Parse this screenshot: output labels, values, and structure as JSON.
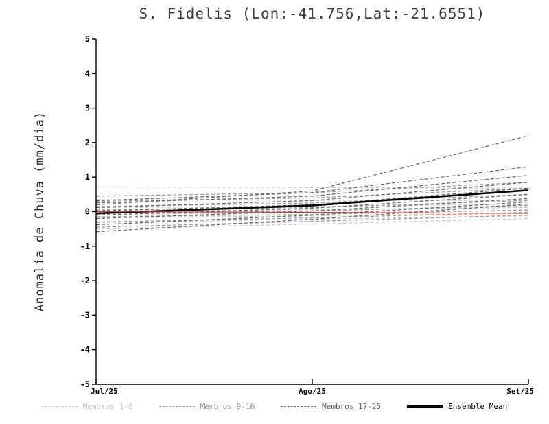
{
  "title": "S. Fidelis (Lon:-41.756,Lat:-21.6551)",
  "ylabel": "Anomalia de Chuva (mm/dia)",
  "chart_data": {
    "type": "line",
    "title": "S. Fidelis (Lon:-41.756,Lat:-21.6551)",
    "xlabel": "",
    "ylabel": "Anomalia de Chuva (mm/dia)",
    "x_categories": [
      "Jul/25",
      "Ago/25",
      "Set/25"
    ],
    "ylim": [
      -5,
      5
    ],
    "y_ticks": [
      5,
      4,
      3,
      2,
      1,
      0,
      -1,
      -2,
      -3,
      -4,
      -5
    ],
    "grid": false,
    "legend_position": "bottom",
    "groups": [
      {
        "name": "Membros 1-8",
        "color": "#c9c9c9",
        "style": "dashed",
        "width": 1.2,
        "series": [
          [
            0.72,
            0.7,
            0.68
          ],
          [
            0.35,
            0.33,
            0.32
          ],
          [
            0.12,
            0.15,
            0.22
          ],
          [
            0.02,
            0.06,
            0.12
          ],
          [
            -0.08,
            -0.03,
            0.03
          ],
          [
            -0.18,
            -0.12,
            -0.05
          ],
          [
            -0.32,
            -0.22,
            -0.12
          ],
          [
            -0.5,
            -0.36,
            -0.2
          ]
        ]
      },
      {
        "name": "Membros 9-16",
        "color": "#999999",
        "style": "dashed",
        "width": 1.2,
        "series": [
          [
            0.45,
            0.55,
            0.85
          ],
          [
            0.3,
            0.4,
            0.68
          ],
          [
            0.15,
            0.25,
            0.5
          ],
          [
            0.05,
            0.12,
            0.32
          ],
          [
            -0.05,
            0.02,
            0.18
          ],
          [
            -0.15,
            -0.08,
            0.05
          ],
          [
            -0.3,
            -0.18,
            -0.02
          ],
          [
            -0.45,
            -0.28,
            -0.1
          ]
        ]
      },
      {
        "name": "Membros 17-25",
        "color": "#666666",
        "style": "dashed",
        "width": 1.2,
        "series": [
          [
            0.2,
            0.6,
            2.2
          ],
          [
            0.32,
            0.55,
            1.3
          ],
          [
            0.25,
            0.45,
            1.05
          ],
          [
            0.12,
            0.32,
            0.85
          ],
          [
            0.02,
            0.2,
            0.68
          ],
          [
            -0.1,
            0.1,
            0.5
          ],
          [
            -0.2,
            0.02,
            0.38
          ],
          [
            -0.38,
            -0.1,
            0.28
          ],
          [
            -0.58,
            -0.22,
            0.22
          ]
        ]
      },
      {
        "name": "Ensemble Mean",
        "color": "#000000",
        "style": "solid",
        "width": 2.6,
        "series": [
          [
            -0.05,
            0.18,
            0.62
          ]
        ]
      },
      {
        "name": "Zero Reference",
        "color": "#dd2a2a",
        "style": "solid",
        "width": 1.1,
        "series": [
          [
            0.0,
            -0.02,
            -0.05
          ]
        ]
      }
    ],
    "legend": [
      {
        "label": "Membros 1-8",
        "color": "#c9c9c9",
        "style": "dashed"
      },
      {
        "label": "Membros 9-16",
        "color": "#999999",
        "style": "dashed"
      },
      {
        "label": "Membros 17-25",
        "color": "#666666",
        "style": "dashed"
      },
      {
        "label": "Ensemble Mean",
        "color": "#000000",
        "style": "solid"
      }
    ]
  }
}
